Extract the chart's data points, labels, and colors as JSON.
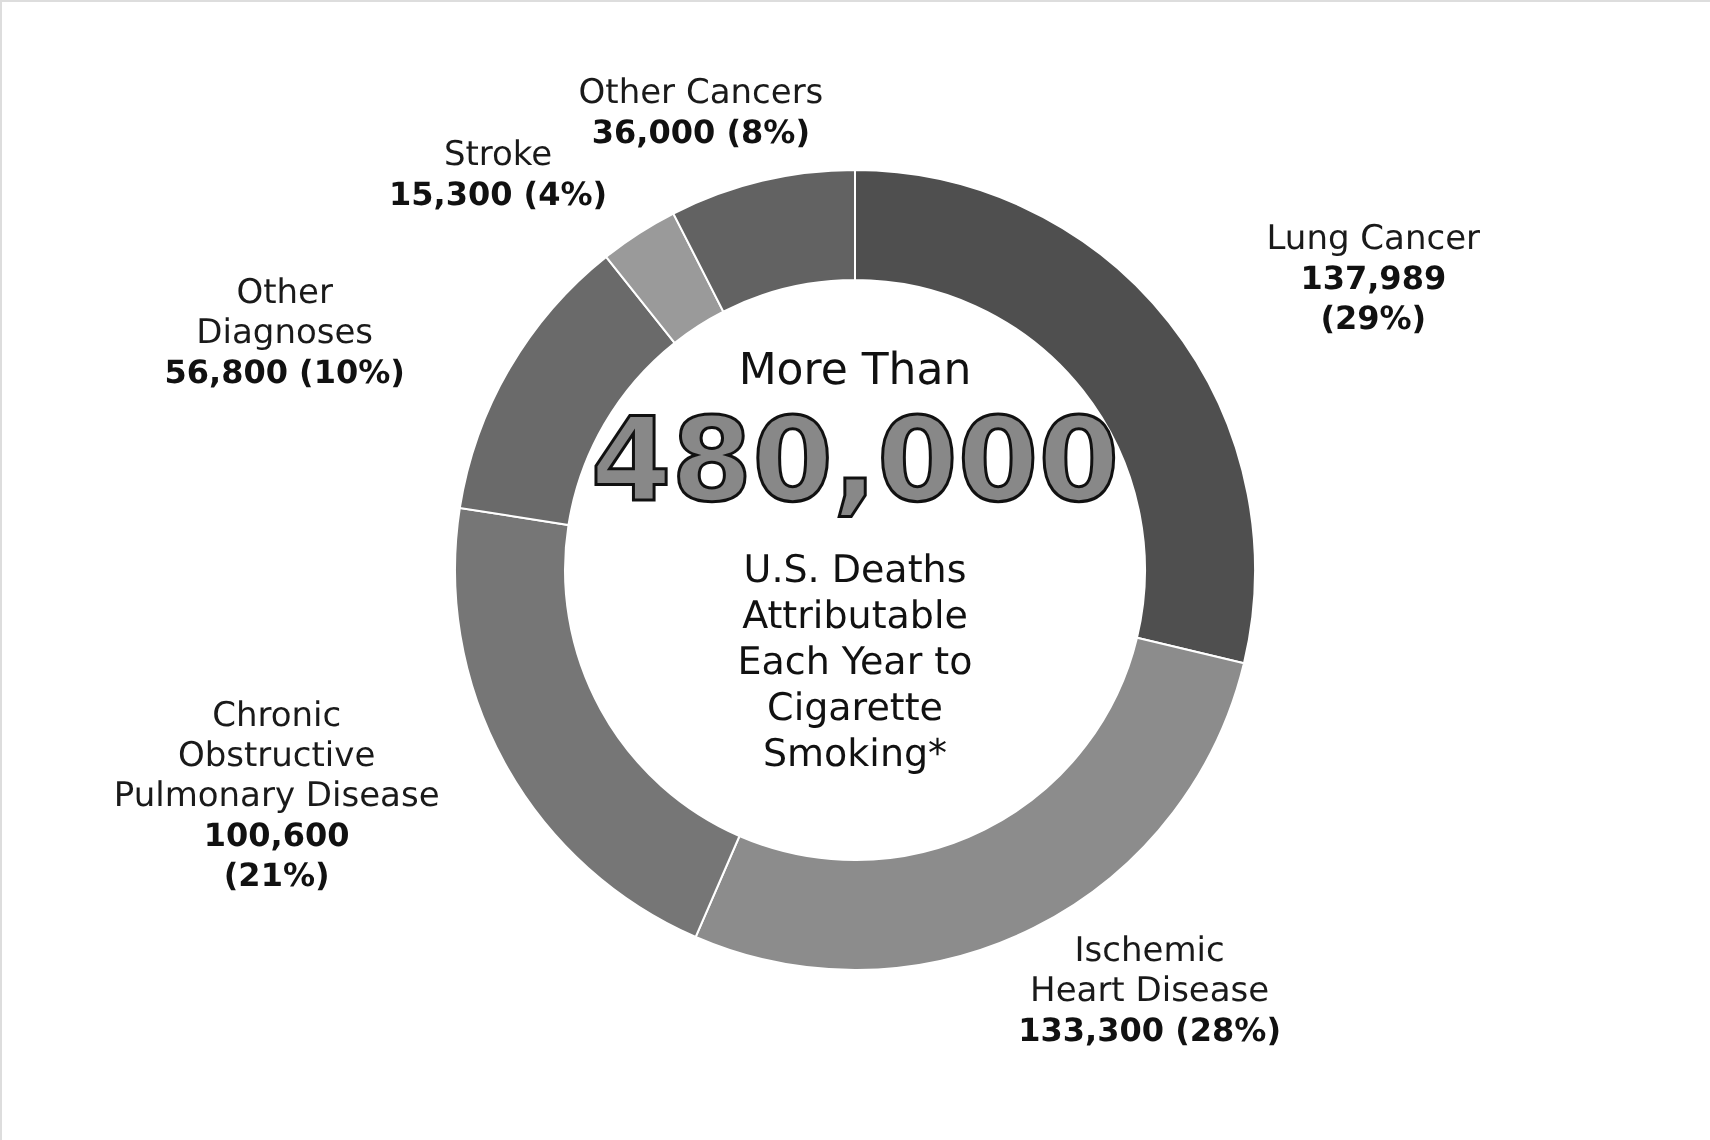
{
  "chart_data": {
    "type": "donut",
    "categories": [
      "Lung Cancer",
      "Ischemic\nHeart Disease",
      "Chronic\nObstructive\nPulmonary Disease",
      "Other\nDiagnoses",
      "Stroke",
      "Other Cancers"
    ],
    "values": [
      137989,
      133300,
      100600,
      56800,
      15300,
      36000
    ],
    "value_labels": [
      "137,989\n(29%)",
      "133,300 (28%)",
      "100,600\n(21%)",
      "56,800 (10%)",
      "15,300 (4%)",
      "36,000 (8%)"
    ],
    "colors": [
      "#4f4f4f",
      "#8c8c8c",
      "#767676",
      "#6a6a6a",
      "#9a9a9a",
      "#626262"
    ],
    "annotations": [
      "More Than",
      "480,000",
      "U.S. Deaths\nAttributable\nEach Year to\nCigarette\nSmoking*"
    ]
  }
}
